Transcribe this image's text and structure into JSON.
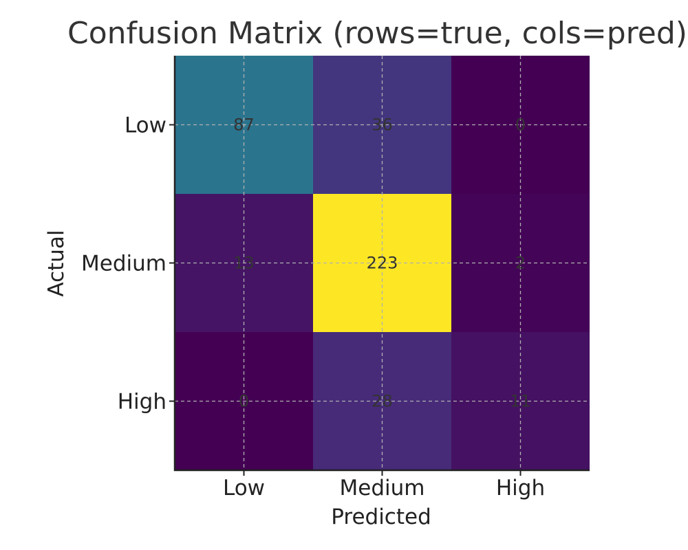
{
  "chart_data": {
    "type": "heatmap",
    "title": "Confusion Matrix (rows=true, cols=pred)",
    "xlabel": "Predicted",
    "ylabel": "Actual",
    "x_categories": [
      "Low",
      "Medium",
      "High"
    ],
    "y_categories": [
      "Low",
      "Medium",
      "High"
    ],
    "values": [
      [
        87,
        36,
        0
      ],
      [
        13,
        223,
        2
      ],
      [
        0,
        28,
        11
      ]
    ],
    "colormap": "viridis",
    "grid": true
  }
}
